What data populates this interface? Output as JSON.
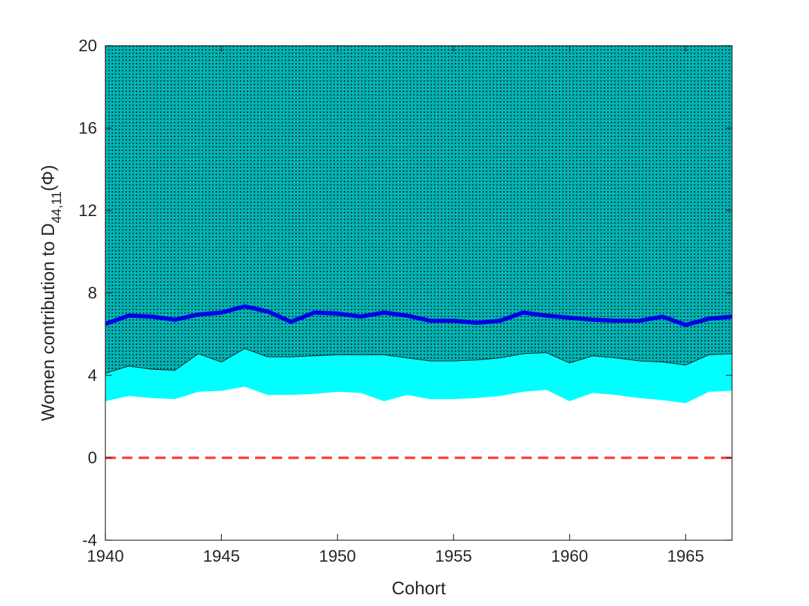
{
  "chart_data": {
    "type": "area",
    "xlabel": "Cohort",
    "ylabel_parts": {
      "prefix": "Women contribution to D",
      "subscript": "44,11",
      "suffix": "(Φ)"
    },
    "xlim": [
      1940,
      1967
    ],
    "ylim": [
      -4,
      20
    ],
    "xticks": [
      1940,
      1945,
      1950,
      1955,
      1960,
      1965
    ],
    "yticks": [
      -4,
      0,
      4,
      8,
      12,
      16,
      20
    ],
    "grid": false,
    "legend": "none",
    "x": [
      1940,
      1941,
      1942,
      1943,
      1944,
      1945,
      1946,
      1947,
      1948,
      1949,
      1950,
      1951,
      1952,
      1953,
      1954,
      1955,
      1956,
      1957,
      1958,
      1959,
      1960,
      1961,
      1962,
      1963,
      1964,
      1965,
      1966,
      1967
    ],
    "series": [
      {
        "kind": "band",
        "color": "#00ffff",
        "lower": [
          2.75,
          3.0,
          2.9,
          2.85,
          3.2,
          3.25,
          3.45,
          3.05,
          3.05,
          3.1,
          3.2,
          3.15,
          2.75,
          3.05,
          2.85,
          2.85,
          2.9,
          3.0,
          3.2,
          3.3,
          2.75,
          3.15,
          3.05,
          2.9,
          2.8,
          2.65,
          3.2,
          3.25
        ],
        "upper": [
          4.1,
          4.45,
          4.3,
          4.25,
          5.05,
          4.65,
          5.3,
          4.9,
          4.9,
          4.95,
          5.0,
          5.0,
          5.0,
          4.85,
          4.7,
          4.7,
          4.75,
          4.85,
          5.05,
          5.1,
          4.6,
          4.95,
          4.85,
          4.7,
          4.65,
          4.5,
          5.0,
          5.05
        ]
      },
      {
        "kind": "band",
        "color": "#00b3b3",
        "pattern": "dotted",
        "lower": [
          4.1,
          4.45,
          4.3,
          4.25,
          5.05,
          4.65,
          5.3,
          4.9,
          4.9,
          4.95,
          5.0,
          5.0,
          5.0,
          4.85,
          4.7,
          4.7,
          4.75,
          4.85,
          5.05,
          5.1,
          4.6,
          4.95,
          4.85,
          4.7,
          4.65,
          4.5,
          5.0,
          5.05
        ],
        "upper": [
          20,
          20,
          20,
          20,
          20,
          20,
          20,
          20,
          20,
          20,
          20,
          20,
          20,
          20,
          20,
          20,
          20,
          20,
          20,
          20,
          20,
          20,
          20,
          20,
          20,
          20,
          20,
          20
        ]
      },
      {
        "kind": "line",
        "color": "#0000e6",
        "values": [
          6.5,
          6.9,
          6.85,
          6.7,
          6.95,
          7.05,
          7.35,
          7.1,
          6.6,
          7.05,
          7.0,
          6.85,
          7.05,
          6.9,
          6.65,
          6.65,
          6.55,
          6.65,
          7.05,
          6.9,
          6.8,
          6.7,
          6.65,
          6.65,
          6.85,
          6.45,
          6.75,
          6.85
        ]
      },
      {
        "kind": "reference",
        "color": "#ff3b3b",
        "style": "dashed",
        "value": 0
      }
    ]
  }
}
